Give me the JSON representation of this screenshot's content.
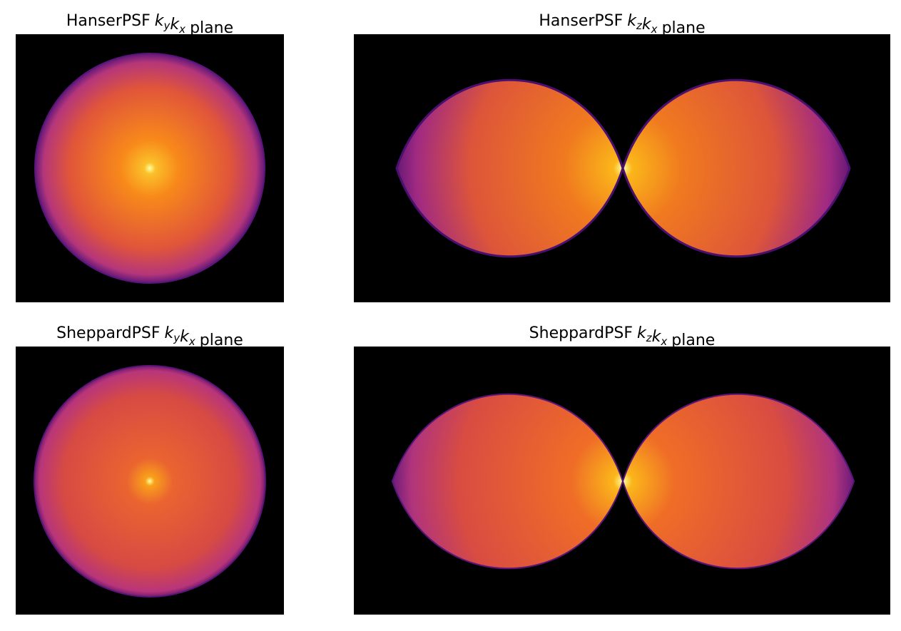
{
  "panels": [
    {
      "title": {
        "lead": "HanserPSF",
        "variables": [
          {
            "base": "k",
            "sub": "y"
          },
          {
            "base": "k",
            "sub": "x"
          }
        ],
        "tail": "plane"
      }
    },
    {
      "title": {
        "lead": "HanserPSF",
        "variables": [
          {
            "base": "k",
            "sub": "z"
          },
          {
            "base": "k",
            "sub": "x"
          }
        ],
        "tail": "plane"
      }
    },
    {
      "title": {
        "lead": "SheppardPSF",
        "variables": [
          {
            "base": "k",
            "sub": "y"
          },
          {
            "base": "k",
            "sub": "x"
          }
        ],
        "tail": "plane"
      }
    },
    {
      "title": {
        "lead": "SheppardPSF",
        "variables": [
          {
            "base": "k",
            "sub": "z"
          },
          {
            "base": "k",
            "sub": "x"
          }
        ],
        "tail": "plane"
      }
    }
  ]
}
